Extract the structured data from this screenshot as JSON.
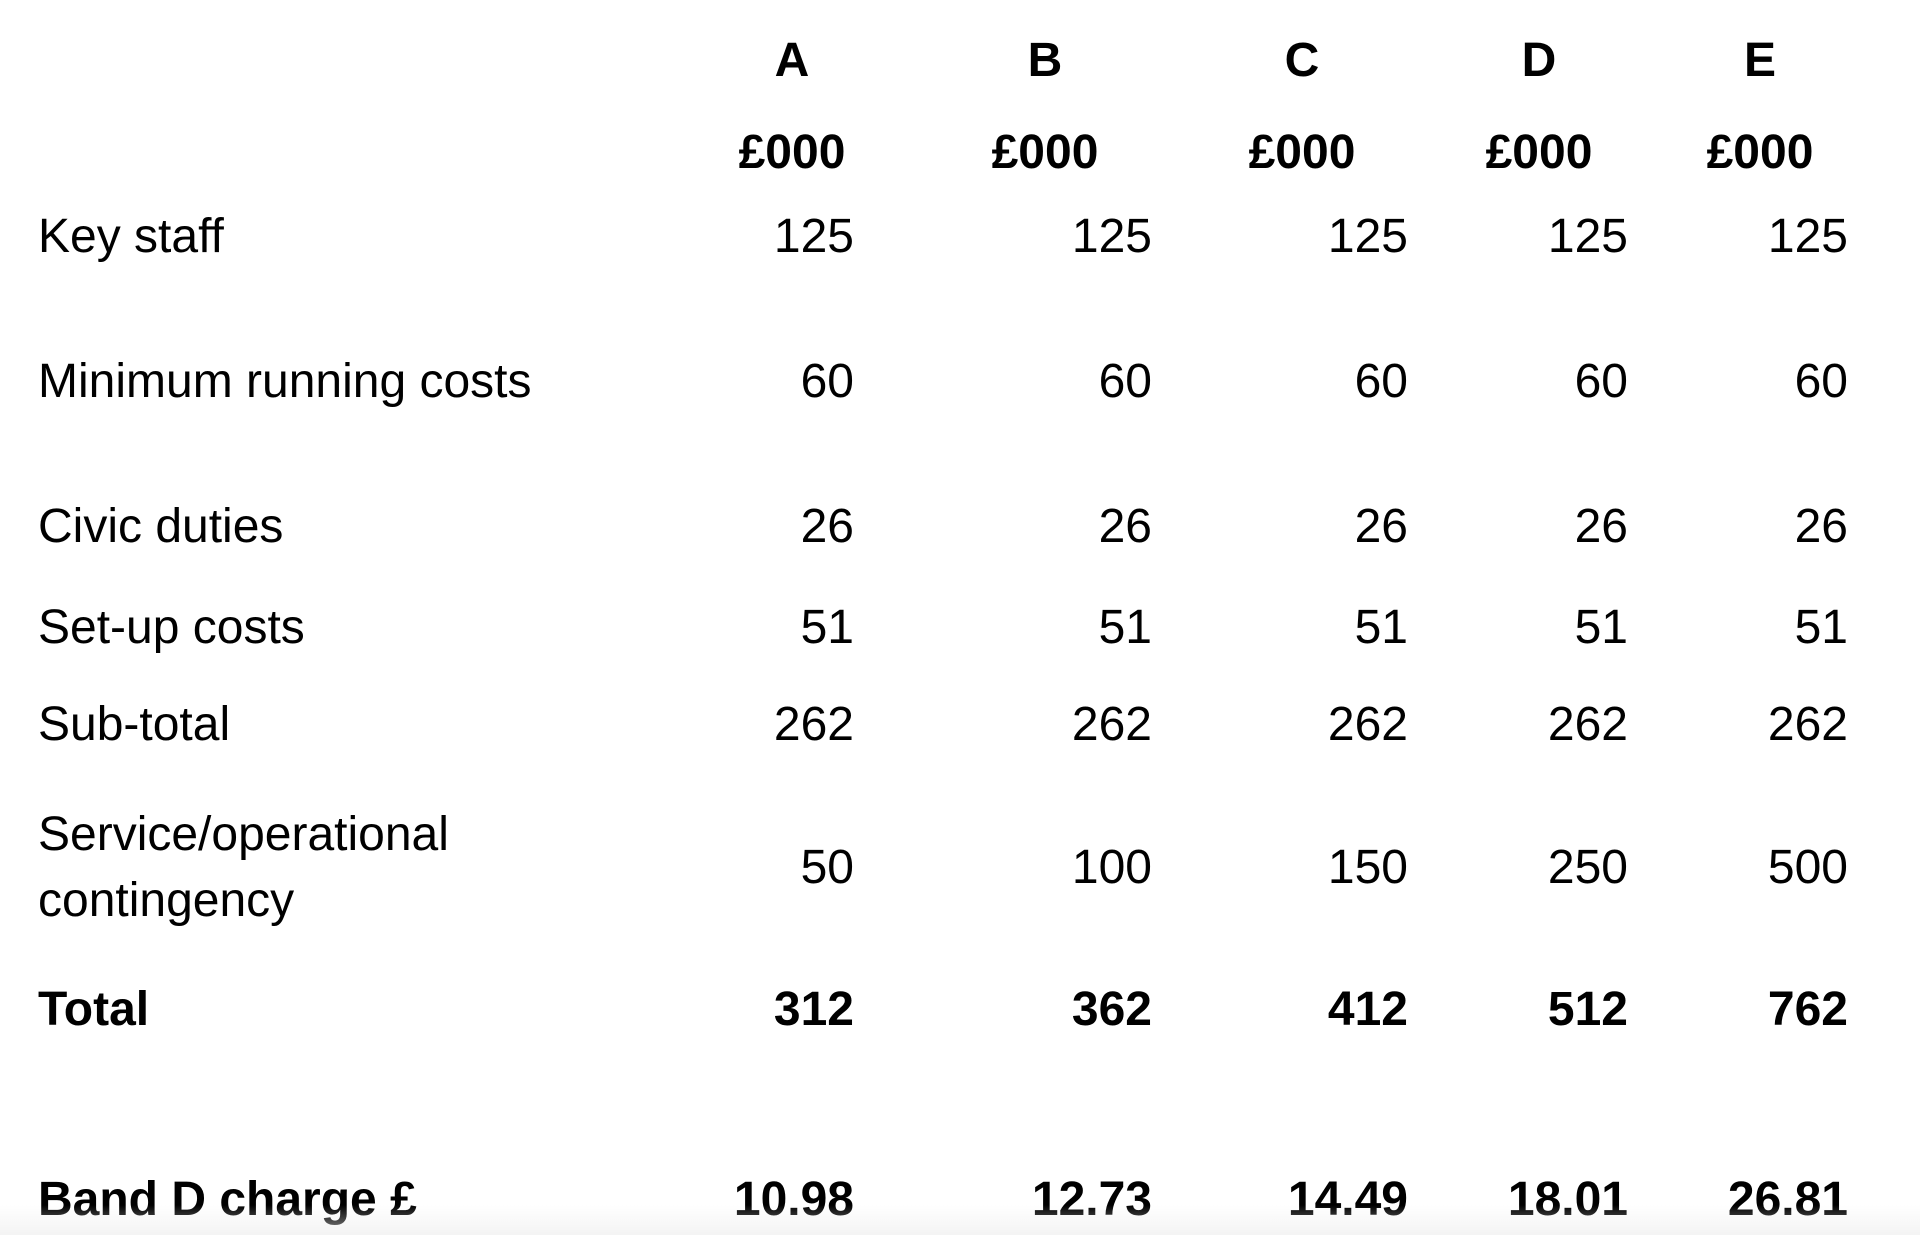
{
  "columns": [
    {
      "letter": "A",
      "unit": "£000"
    },
    {
      "letter": "B",
      "unit": "£000"
    },
    {
      "letter": "C",
      "unit": "£000"
    },
    {
      "letter": "D",
      "unit": "£000"
    },
    {
      "letter": "E",
      "unit": "£000"
    }
  ],
  "rows": [
    {
      "label": "Key staff",
      "values": [
        "125",
        "125",
        "125",
        "125",
        "125"
      ]
    },
    {
      "label": "Minimum running costs",
      "values": [
        "60",
        "60",
        "60",
        "60",
        "60"
      ]
    },
    {
      "label": "Civic duties",
      "values": [
        "26",
        "26",
        "26",
        "26",
        "26"
      ]
    },
    {
      "label": "Set-up costs",
      "values": [
        "51",
        "51",
        "51",
        "51",
        "51"
      ]
    },
    {
      "label": "Sub-total",
      "values": [
        "262",
        "262",
        "262",
        "262",
        "262"
      ]
    },
    {
      "label_line1": "Service/operational",
      "label_line2": "contingency",
      "values": [
        "50",
        "100",
        "150",
        "250",
        "500"
      ]
    },
    {
      "label": "Total",
      "values": [
        "312",
        "362",
        "412",
        "512",
        "762"
      ]
    },
    {
      "label": "Band D charge £",
      "values": [
        "10.98",
        "12.73",
        "14.49",
        "18.01",
        "26.81"
      ]
    }
  ]
}
